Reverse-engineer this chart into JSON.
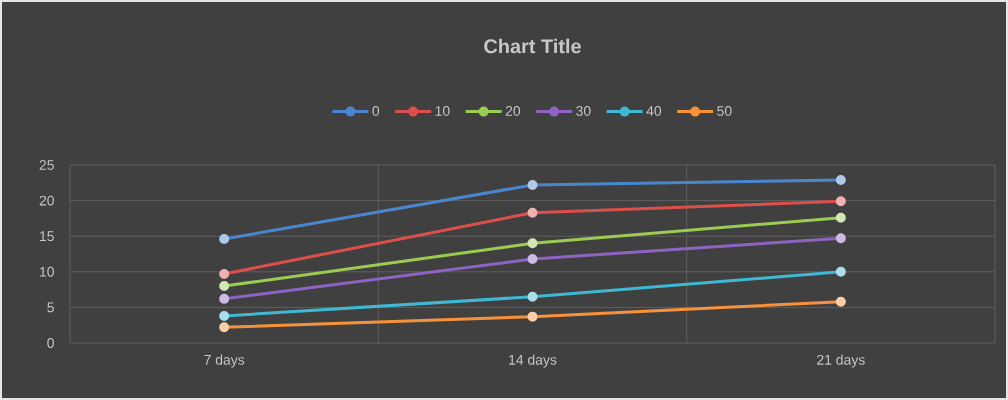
{
  "chart_data": {
    "type": "line",
    "title": "Chart Title",
    "categories": [
      "7 days",
      "14 days",
      "21 days"
    ],
    "series": [
      {
        "name": "0",
        "color": "#4a86d0",
        "values": [
          14.6,
          22.2,
          22.9
        ]
      },
      {
        "name": "10",
        "color": "#dd4f4a",
        "values": [
          9.7,
          18.3,
          19.9
        ]
      },
      {
        "name": "20",
        "color": "#9bcb52",
        "values": [
          8.0,
          14.0,
          17.6
        ]
      },
      {
        "name": "30",
        "color": "#8e63c4",
        "values": [
          6.2,
          11.8,
          14.7
        ]
      },
      {
        "name": "40",
        "color": "#3fb8d4",
        "values": [
          3.8,
          6.5,
          10.0
        ]
      },
      {
        "name": "50",
        "color": "#f7923a",
        "values": [
          2.2,
          3.7,
          5.8
        ]
      }
    ],
    "ylim": [
      0,
      25
    ],
    "yticks": [
      0,
      5,
      10,
      15,
      20,
      25
    ],
    "grid": true,
    "legend": "top",
    "marker": "circle",
    "line_style": "solid"
  }
}
